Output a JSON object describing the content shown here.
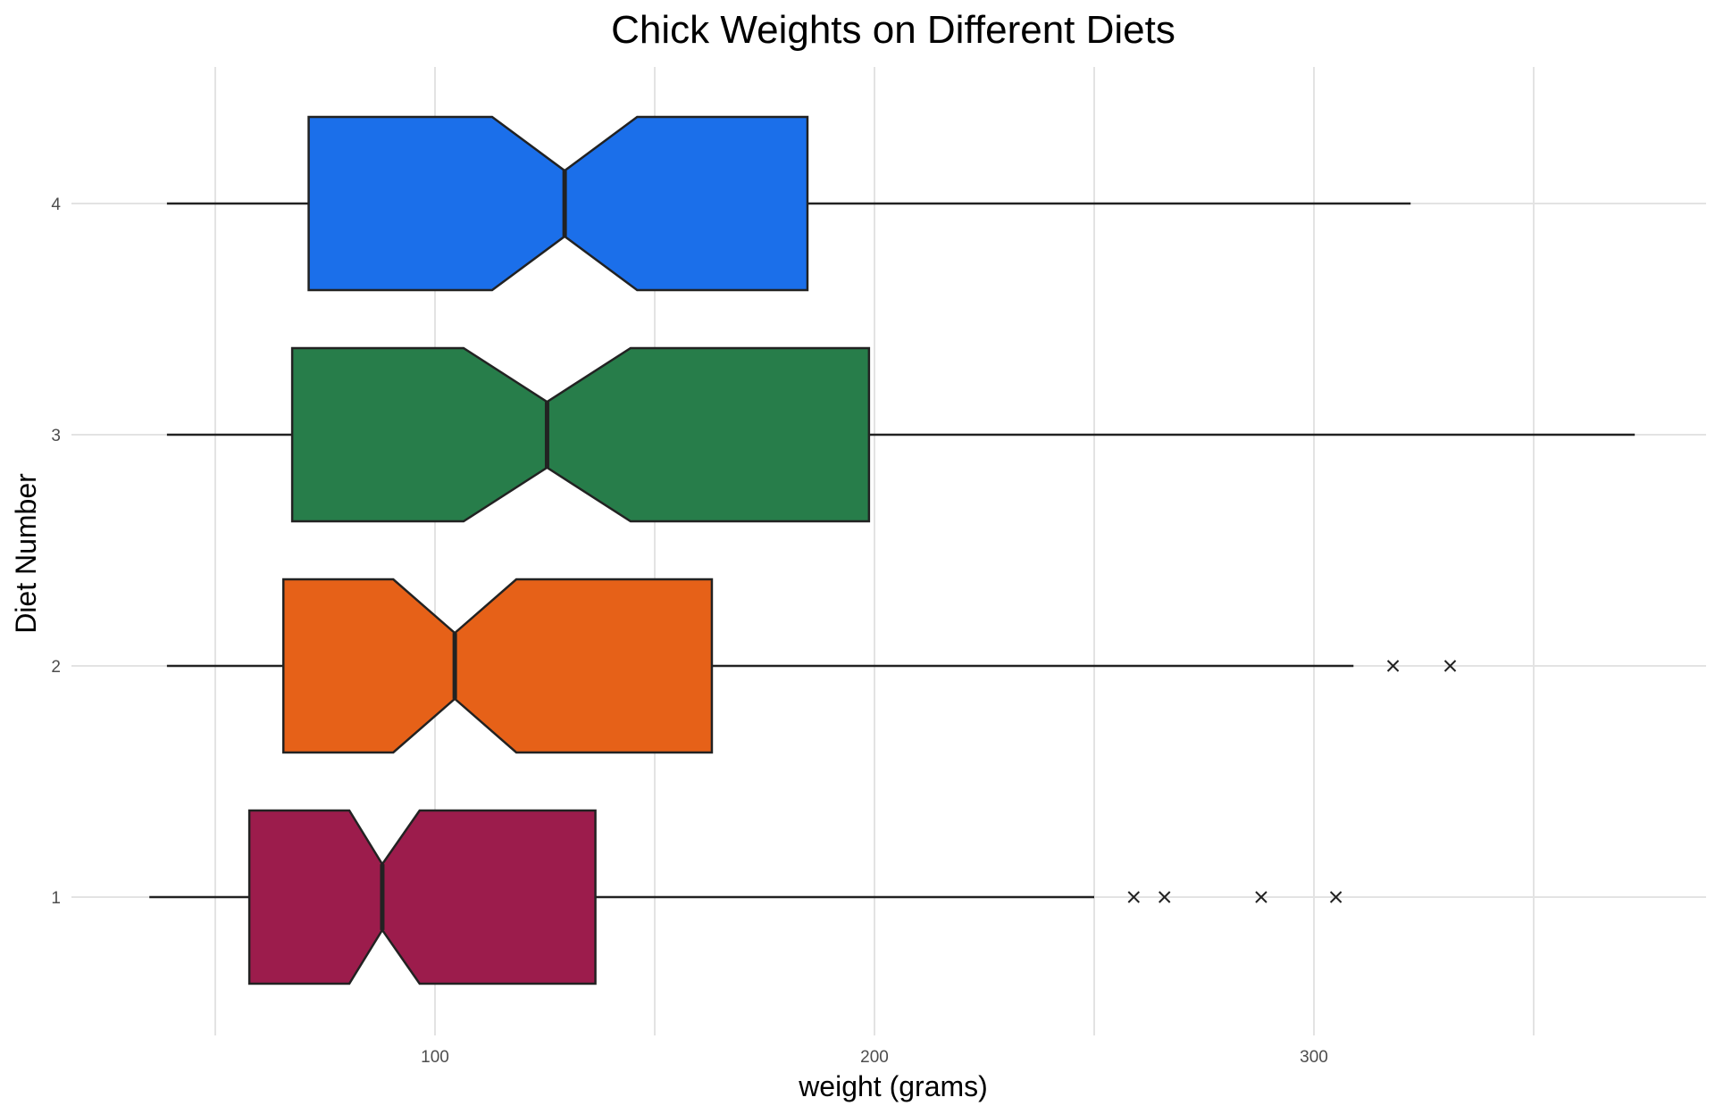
{
  "chart_data": {
    "type": "boxplot",
    "orientation": "horizontal",
    "notched": true,
    "title": "Chick Weights on Different Diets",
    "xlabel": "weight (grams)",
    "ylabel": "Diet Number",
    "xlim": [
      25,
      390
    ],
    "x_ticks": [
      100,
      200,
      300
    ],
    "x_gridlines": [
      50,
      100,
      150,
      200,
      250,
      300,
      350
    ],
    "categories": [
      "1",
      "2",
      "3",
      "4"
    ],
    "grid": true,
    "legend": "none",
    "outlier_marker": "x",
    "boxes": [
      {
        "category": "1",
        "whisker_low": 35,
        "q1": 57.75,
        "median": 88,
        "q3": 136.5,
        "whisker_high": 250,
        "notch_low": 80.5,
        "notch_high": 96.5,
        "outliers": [
          259,
          266,
          288,
          305
        ],
        "color": "#9c1c4c"
      },
      {
        "category": "2",
        "whisker_low": 39,
        "q1": 65.5,
        "median": 104.5,
        "q3": 163,
        "whisker_high": 309,
        "notch_low": 90.5,
        "notch_high": 118.5,
        "outliers": [
          318,
          331
        ],
        "color": "#e66118"
      },
      {
        "category": "3",
        "whisker_low": 39,
        "q1": 67.5,
        "median": 125.5,
        "q3": 198.75,
        "whisker_high": 373,
        "notch_low": 106.5,
        "notch_high": 144.5,
        "outliers": [],
        "color": "#277d4a"
      },
      {
        "category": "4",
        "whisker_low": 39,
        "q1": 71.25,
        "median": 129.5,
        "q3": 184.75,
        "whisker_high": 322,
        "notch_low": 113,
        "notch_high": 146,
        "outliers": [],
        "color": "#1b6fea"
      }
    ]
  }
}
